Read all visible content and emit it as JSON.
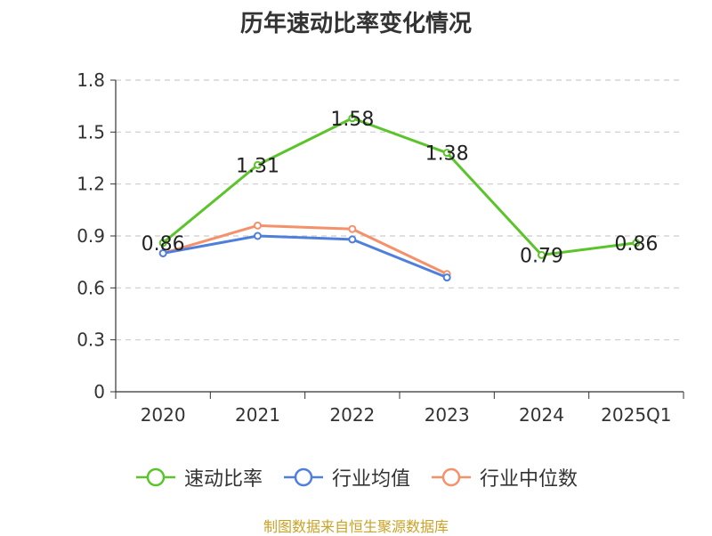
{
  "chart_data": {
    "type": "line",
    "title": "历年速动比率变化情况",
    "categories": [
      "2020",
      "2021",
      "2022",
      "2023",
      "2024",
      "2025Q1"
    ],
    "yticks": [
      "0",
      "0.3",
      "0.6",
      "0.9",
      "1.2",
      "1.5",
      "1.8"
    ],
    "ylim": [
      0,
      1.8
    ],
    "grid": true,
    "legend_position": "bottom-center",
    "series": [
      {
        "name": "速动比率",
        "color": "#5cc42b",
        "values": [
          0.86,
          1.31,
          1.58,
          1.38,
          0.79,
          0.86
        ],
        "labels": [
          "0.86",
          "1.31",
          "1.58",
          "1.38",
          "0.79",
          "0.86"
        ],
        "show_labels": true
      },
      {
        "name": "行业均值",
        "color": "#4f7fdc",
        "values": [
          0.8,
          0.9,
          0.88,
          0.66,
          null,
          null
        ],
        "show_labels": false
      },
      {
        "name": "行业中位数",
        "color": "#f5916a",
        "values": [
          0.8,
          0.96,
          0.94,
          0.68,
          null,
          null
        ],
        "show_labels": false
      }
    ]
  },
  "source_note": "制图数据来自恒生聚源数据库"
}
